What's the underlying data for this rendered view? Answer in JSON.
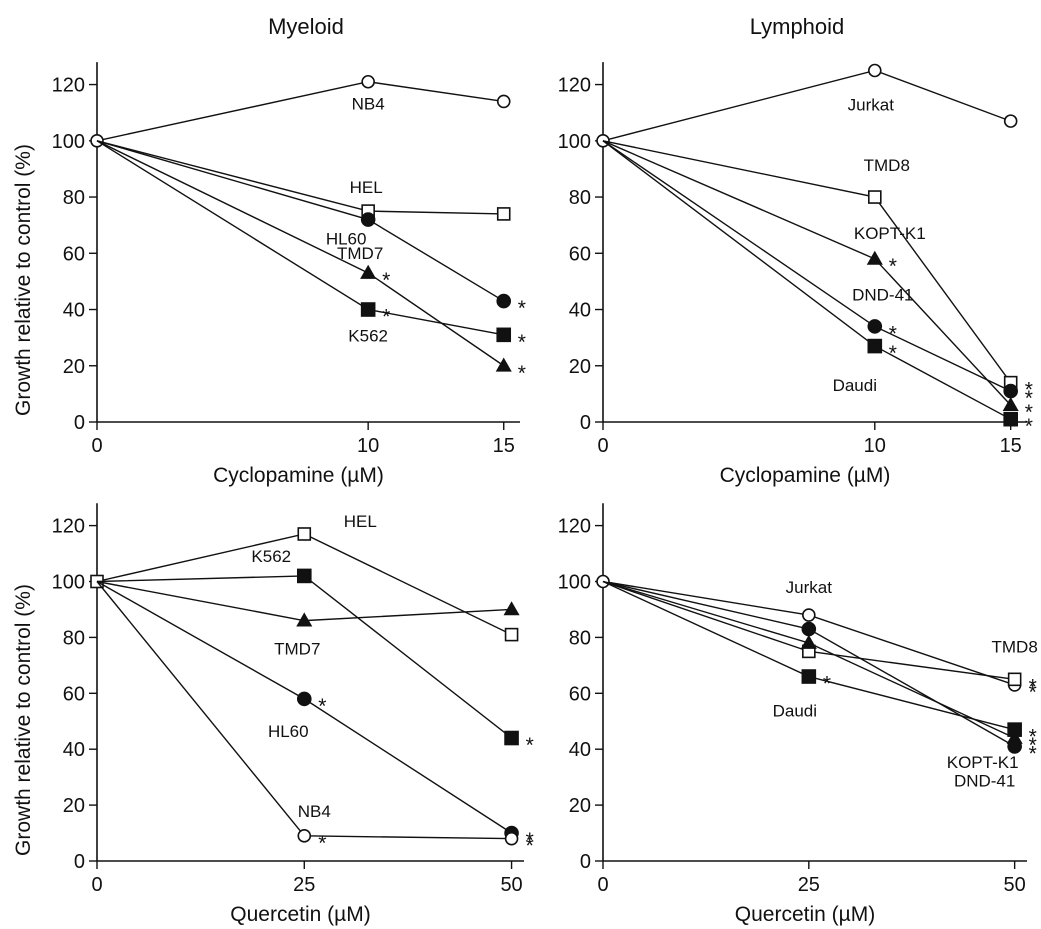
{
  "columns": [
    {
      "title": "Myeloid"
    },
    {
      "title": "Lymphoid"
    }
  ],
  "ylabel": "Growth relative to control (%)",
  "chart_data": [
    {
      "type": "line",
      "panel": "top-left",
      "xlabel": "Cyclopamine (µM)",
      "x": [
        0,
        10,
        15
      ],
      "xticks": [
        "0",
        "10",
        "15"
      ],
      "xlim": [
        0,
        15.6
      ],
      "ylim": [
        0,
        128
      ],
      "yticks": [
        "0",
        "20",
        "40",
        "60",
        "80",
        "100",
        "120"
      ],
      "series": [
        {
          "name": "NB4",
          "marker": "circle-open",
          "values": [
            100,
            121,
            114
          ],
          "stars": [
            false,
            false,
            false
          ]
        },
        {
          "name": "HEL",
          "marker": "square-open",
          "values": [
            100,
            75,
            74
          ],
          "stars": [
            false,
            false,
            false
          ]
        },
        {
          "name": "HL60",
          "marker": "circle-filled",
          "values": [
            100,
            72,
            43
          ],
          "stars": [
            false,
            false,
            true
          ]
        },
        {
          "name": "TMD7",
          "marker": "triangle-filled",
          "values": [
            100,
            53,
            20
          ],
          "stars": [
            false,
            true,
            true
          ]
        },
        {
          "name": "K562",
          "marker": "square-filled",
          "values": [
            100,
            40,
            31
          ],
          "stars": [
            false,
            true,
            true
          ]
        }
      ]
    },
    {
      "type": "line",
      "panel": "top-right",
      "xlabel": "Cyclopamine (µM)",
      "x": [
        0,
        10,
        15
      ],
      "xticks": [
        "0",
        "10",
        "15"
      ],
      "xlim": [
        0,
        15.6
      ],
      "ylim": [
        0,
        128
      ],
      "yticks": [
        "0",
        "20",
        "40",
        "60",
        "80",
        "100",
        "120"
      ],
      "series": [
        {
          "name": "Jurkat",
          "marker": "circle-open",
          "values": [
            100,
            125,
            107
          ],
          "stars": [
            false,
            false,
            false
          ]
        },
        {
          "name": "TMD8",
          "marker": "square-open",
          "values": [
            100,
            80,
            14
          ],
          "stars": [
            false,
            false,
            true
          ]
        },
        {
          "name": "KOPT-K1",
          "marker": "triangle-filled",
          "values": [
            100,
            58,
            6
          ],
          "stars": [
            false,
            true,
            true
          ]
        },
        {
          "name": "DND-41",
          "marker": "circle-filled",
          "values": [
            100,
            34,
            11
          ],
          "stars": [
            false,
            true,
            true
          ]
        },
        {
          "name": "Daudi",
          "marker": "square-filled",
          "values": [
            100,
            27,
            1
          ],
          "stars": [
            false,
            true,
            true
          ]
        }
      ]
    },
    {
      "type": "line",
      "panel": "bottom-left",
      "xlabel": "Quercetin (µM)",
      "x": [
        0,
        25,
        50
      ],
      "xticks": [
        "0",
        "25",
        "50"
      ],
      "xlim": [
        0,
        51.5
      ],
      "ylim": [
        0,
        128
      ],
      "yticks": [
        "0",
        "20",
        "40",
        "60",
        "80",
        "100",
        "120"
      ],
      "series": [
        {
          "name": "HEL",
          "marker": "square-open",
          "values": [
            100,
            117,
            81
          ],
          "stars": [
            false,
            false,
            false
          ]
        },
        {
          "name": "K562",
          "marker": "square-filled",
          "values": [
            100,
            102,
            44
          ],
          "stars": [
            false,
            false,
            true
          ]
        },
        {
          "name": "TMD7",
          "marker": "triangle-filled",
          "values": [
            100,
            86,
            90
          ],
          "stars": [
            false,
            false,
            false
          ]
        },
        {
          "name": "HL60",
          "marker": "circle-filled",
          "values": [
            100,
            58,
            10
          ],
          "stars": [
            false,
            true,
            true
          ]
        },
        {
          "name": "NB4",
          "marker": "circle-open",
          "values": [
            100,
            9,
            8
          ],
          "stars": [
            false,
            true,
            true
          ]
        }
      ]
    },
    {
      "type": "line",
      "panel": "bottom-right",
      "xlabel": "Quercetin (µM)",
      "x": [
        0,
        25,
        50
      ],
      "xticks": [
        "0",
        "25",
        "50"
      ],
      "xlim": [
        0,
        51.5
      ],
      "ylim": [
        0,
        128
      ],
      "yticks": [
        "0",
        "20",
        "40",
        "60",
        "80",
        "100",
        "120"
      ],
      "series": [
        {
          "name": "Jurkat",
          "marker": "circle-open",
          "values": [
            100,
            88,
            63
          ],
          "stars": [
            false,
            false,
            true
          ]
        },
        {
          "name": "TMD8",
          "marker": "square-open",
          "values": [
            100,
            75,
            65
          ],
          "stars": [
            false,
            false,
            true
          ]
        },
        {
          "name": "KOPT-K1",
          "marker": "triangle-filled",
          "values": [
            100,
            78,
            44
          ],
          "stars": [
            false,
            false,
            true
          ]
        },
        {
          "name": "DND-41",
          "marker": "circle-filled",
          "values": [
            100,
            83,
            41
          ],
          "stars": [
            false,
            false,
            true
          ]
        },
        {
          "name": "Daudi",
          "marker": "square-filled",
          "values": [
            100,
            66,
            47
          ],
          "stars": [
            false,
            true,
            true
          ]
        }
      ]
    }
  ]
}
